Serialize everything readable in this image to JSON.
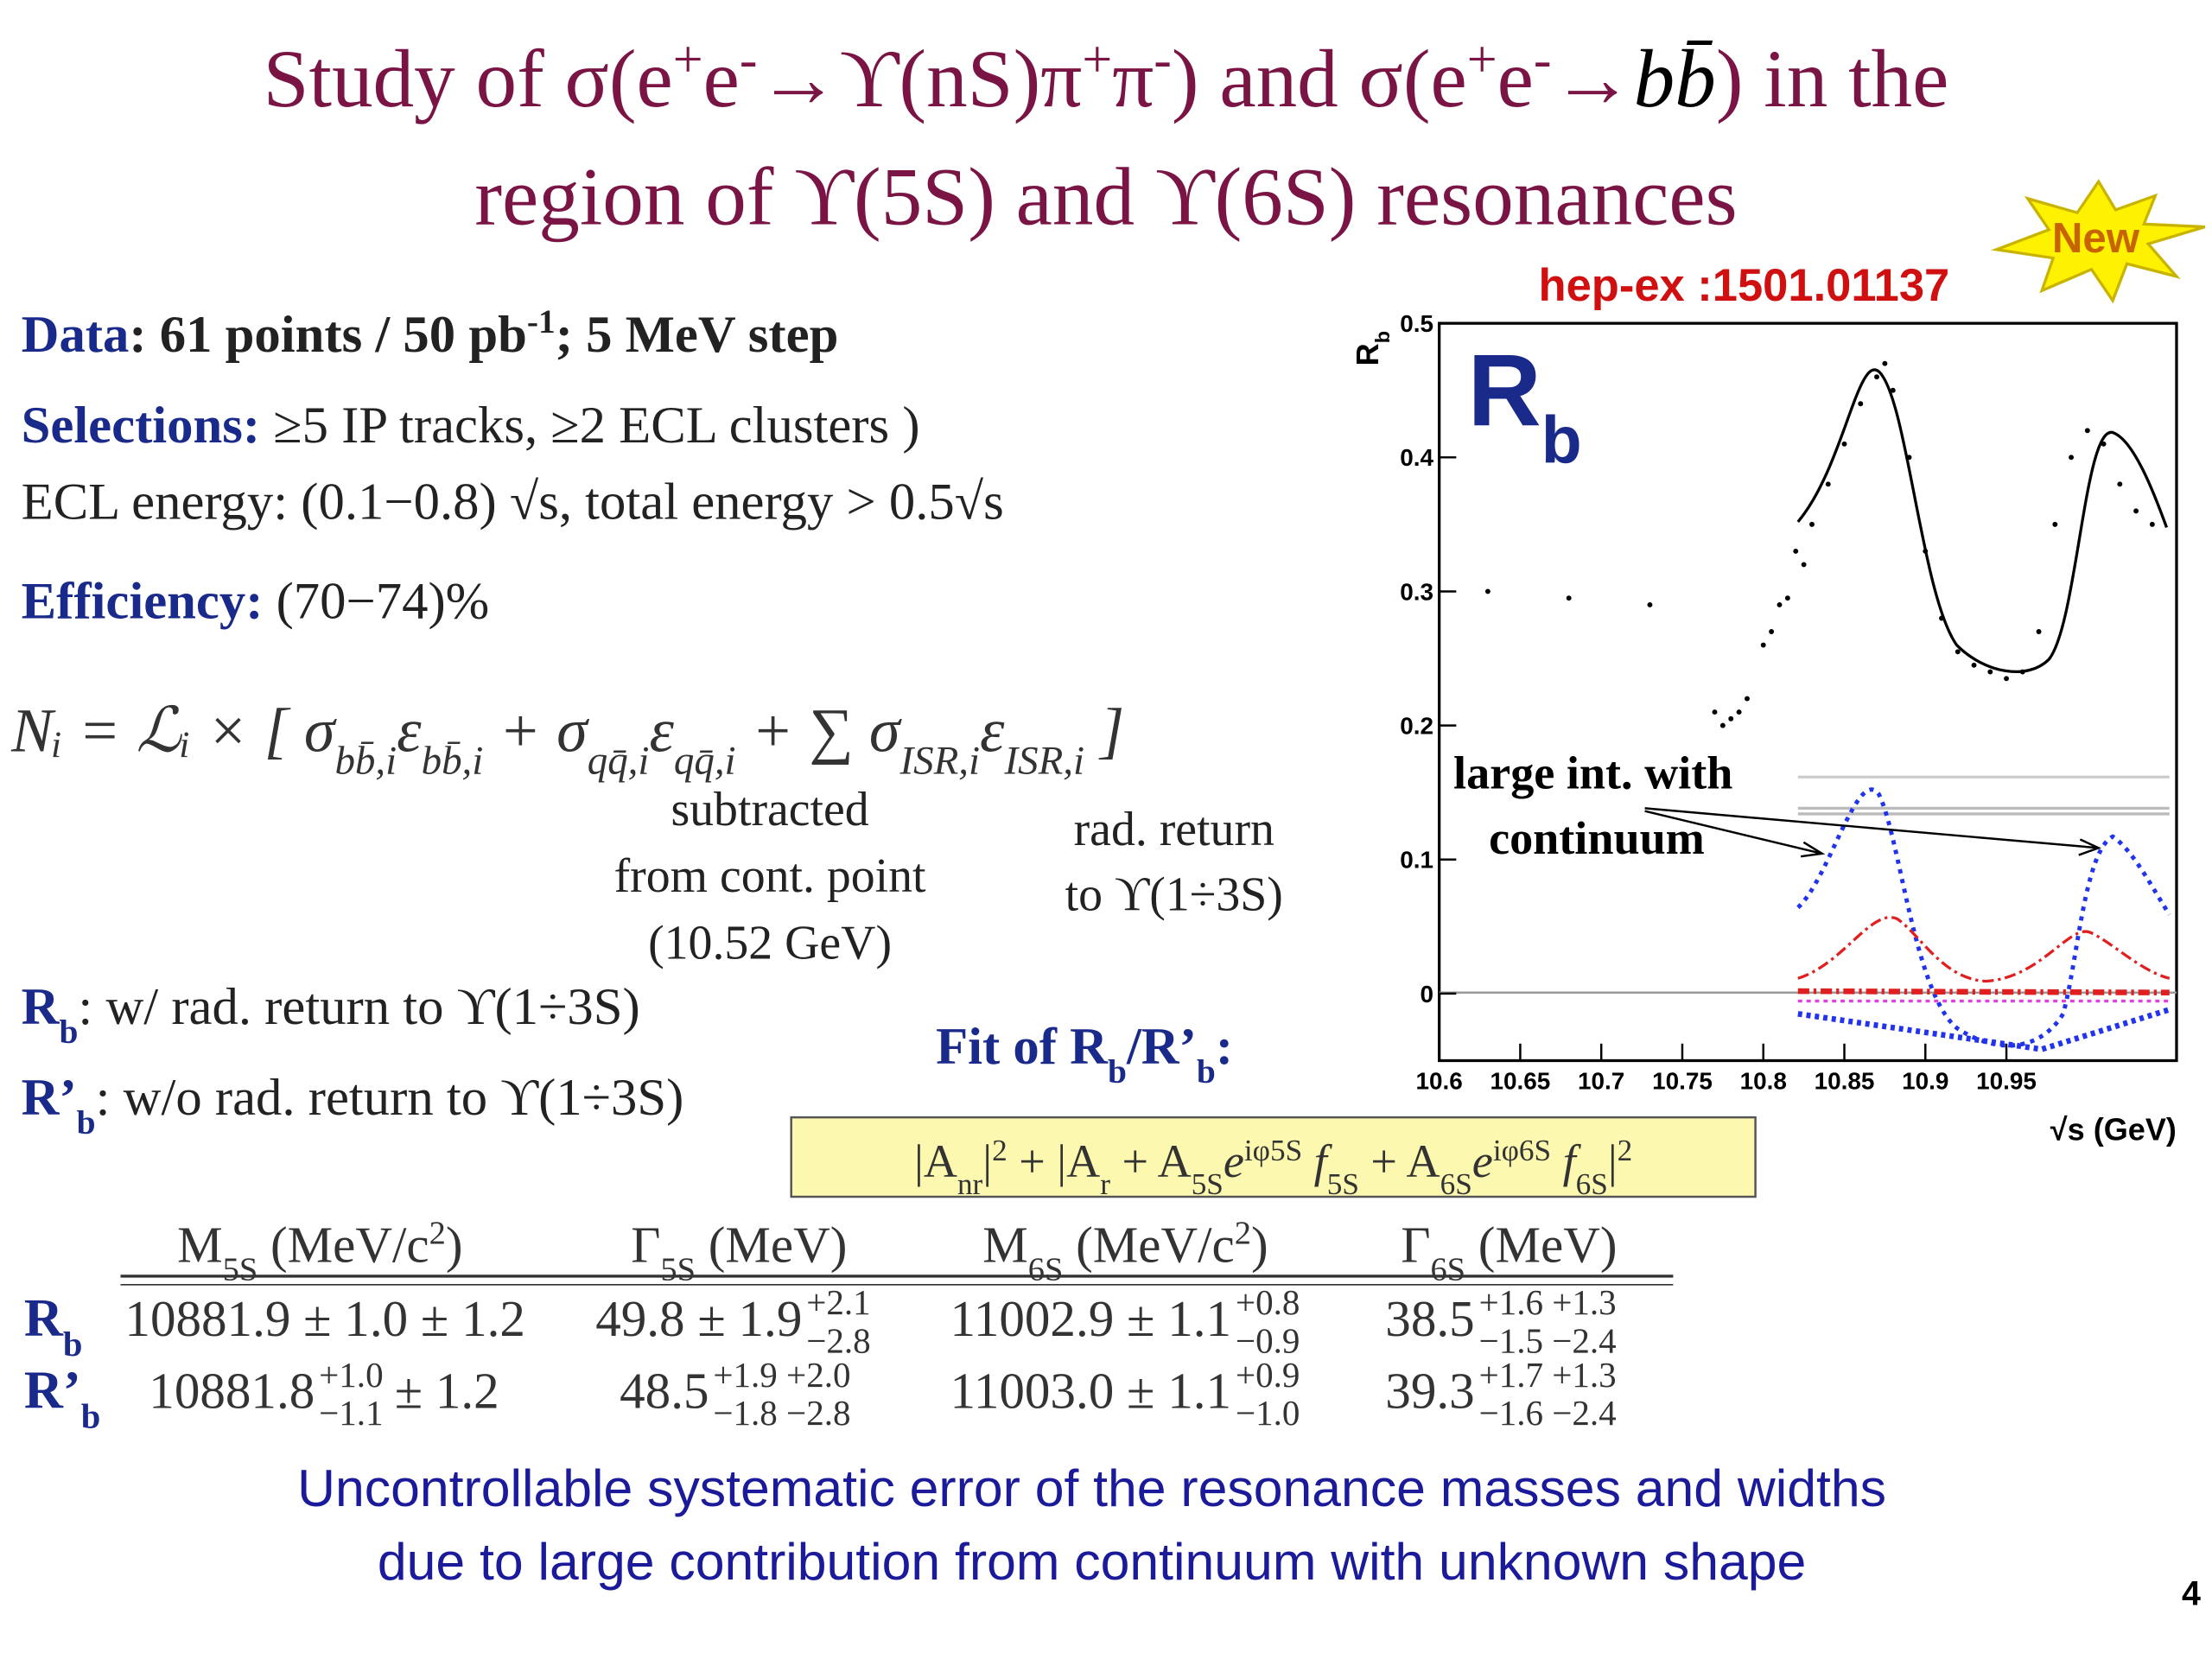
{
  "title": {
    "line1": [
      "Study of σ(e",
      "+",
      "e",
      "-",
      "→ϒ(nS)π",
      "+",
      "π",
      "-",
      ") and σ(e",
      "+",
      "e",
      "-",
      "→",
      "bb̄",
      ") in the"
    ],
    "line2": "region of ϒ(5S) and ϒ(6S) resonances"
  },
  "badge": "New",
  "reference": "hep-ex :1501.01137",
  "data_line": [
    "Data",
    ": 61 points / 50 pb",
    "-1",
    "; 5 MeV step"
  ],
  "selections": [
    "Selections:",
    " ≥5 IP tracks, ≥2 ECL clusters )"
  ],
  "ecl": "ECL energy: (0.1−0.8) √s, total energy > 0.5√s",
  "efficiency": [
    "Efficiency:",
    " (70−74)%"
  ],
  "formula": [
    "Nᵢ = ℒᵢ × [ σ",
    "bb̄,i",
    "ε",
    "bb̄,i",
    " + σ",
    "qq̄,i",
    "ε",
    "qq̄,i",
    " + ∑ σ",
    "ISR,i",
    "ε",
    "ISR,i",
    " ]"
  ],
  "note_subtracted": [
    "subtracted",
    "from cont. point",
    "(10.52 GeV)"
  ],
  "note_rad": [
    "rad. return",
    "to ϒ(1÷3S)"
  ],
  "rb_def": [
    "R",
    "b",
    ": w/ rad. return to ϒ(1÷3S)"
  ],
  "rpb_def": [
    "R’",
    "b",
    ": w/o rad. return to ϒ(1÷3S)"
  ],
  "fit_label": [
    "Fit of R",
    "b",
    "/R’",
    "b",
    ":"
  ],
  "fit_formula": [
    "|A",
    "nr",
    "|",
    "2",
    " + |A",
    "r",
    " + A",
    "5S",
    "e",
    "iφ5S",
    " f",
    "5S",
    " + A",
    "6S",
    "e",
    "iφ6S",
    " f",
    "6S",
    "|",
    "2"
  ],
  "table": {
    "header": [
      [
        "M",
        "5S",
        " (MeV/c",
        "2",
        ")"
      ],
      [
        "Γ",
        "5S",
        " (MeV)"
      ],
      [
        "M",
        "6S",
        " (MeV/c",
        "2",
        ")"
      ],
      [
        "Γ",
        "6S",
        " (MeV)"
      ]
    ],
    "rows": [
      [
        [
          "R",
          "b"
        ],
        [
          "10881.9 ± 1.0 ± 1.2"
        ],
        [
          "49.8 ± 1.9",
          "+2.1",
          "−2.8"
        ],
        [
          "11002.9 ± 1.1",
          "+0.8",
          "−0.9"
        ],
        [
          "38.5",
          "+1.6 +1.3",
          "−1.5 −2.4"
        ]
      ],
      [
        [
          "R’",
          "b"
        ],
        [
          "10881.8",
          "+1.0",
          "−1.1",
          "± 1.2"
        ],
        [
          "48.5",
          "+1.9 +2.0",
          "−1.8 −2.8"
        ],
        [
          "11003.0 ± 1.1",
          "+0.9",
          "−1.0"
        ],
        [
          "39.3",
          "+1.7 +1.3",
          "−1.6 −2.4"
        ]
      ]
    ]
  },
  "conclusion": [
    "Uncontrollable systematic error of the resonance masses and widths",
    "due to large contribution from continuum with unknown shape"
  ],
  "page_number": "4",
  "plot": {
    "type": "scatter",
    "panel_label": [
      "R",
      "b"
    ],
    "y_label": [
      "R",
      "b"
    ],
    "x_label": "√s (GeV)",
    "annotation": [
      "large int. with",
      "continuum"
    ],
    "x": [
      10.63,
      10.68,
      10.73,
      10.77,
      10.775,
      10.78,
      10.785,
      10.79,
      10.8,
      10.805,
      10.81,
      10.815,
      10.82,
      10.825,
      10.83,
      10.84,
      10.85,
      10.86,
      10.87,
      10.875,
      10.88,
      10.89,
      10.9,
      10.91,
      10.92,
      10.93,
      10.94,
      10.95,
      10.96,
      10.97,
      10.98,
      10.99,
      11.0,
      11.01,
      11.02,
      11.03,
      11.04
    ],
    "values": [
      0.3,
      0.295,
      0.29,
      0.21,
      0.2,
      0.205,
      0.21,
      0.22,
      0.26,
      0.27,
      0.29,
      0.295,
      0.33,
      0.32,
      0.35,
      0.38,
      0.41,
      0.44,
      0.46,
      0.47,
      0.45,
      0.4,
      0.33,
      0.28,
      0.255,
      0.245,
      0.24,
      0.235,
      0.24,
      0.27,
      0.35,
      0.4,
      0.42,
      0.41,
      0.38,
      0.36,
      0.35
    ],
    "xlim": [
      10.6,
      11.055
    ],
    "ylim": [
      -0.05,
      0.5
    ],
    "xticks": [
      10.6,
      10.65,
      10.7,
      10.75,
      10.8,
      10.85,
      10.9,
      10.95
    ],
    "yticks": [
      0,
      0.1,
      0.2,
      0.3,
      0.4,
      0.5
    ]
  }
}
